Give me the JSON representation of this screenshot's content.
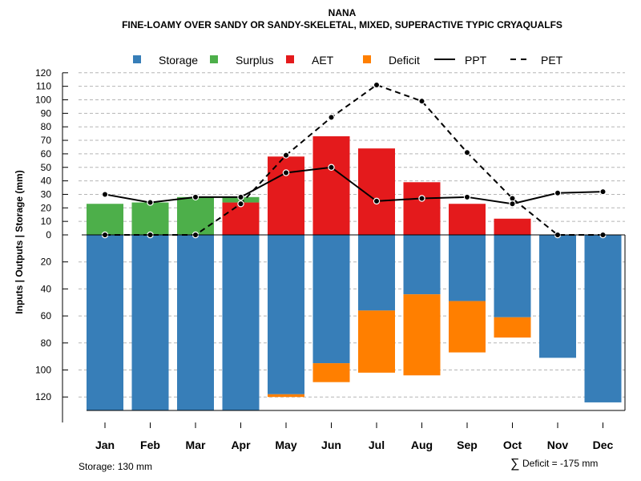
{
  "chart_data": {
    "type": "bar",
    "title": "NANA",
    "subtitle": "FINE-LOAMY OVER SANDY OR SANDY-SKELETAL, MIXED, SUPERACTIVE TYPIC CRYAQUALFS",
    "ylabel": "Inputs | Outputs | Storage    (mm)",
    "ylim": [
      -130,
      120
    ],
    "y_ticks_positive": [
      0,
      10,
      20,
      30,
      40,
      50,
      60,
      70,
      80,
      90,
      100,
      110,
      120
    ],
    "y_ticks_negative": [
      20,
      40,
      60,
      80,
      100,
      120
    ],
    "categories": [
      "Jan",
      "Feb",
      "Mar",
      "Apr",
      "May",
      "Jun",
      "Jul",
      "Aug",
      "Sep",
      "Oct",
      "Nov",
      "Dec"
    ],
    "series": [
      {
        "name": "Storage",
        "color": "#377EB8",
        "values": [
          130,
          130,
          130,
          130,
          118,
          95,
          56,
          44,
          49,
          61,
          91,
          124
        ]
      },
      {
        "name": "Surplus",
        "color": "#4DAF4A",
        "values": [
          23,
          24,
          28,
          4,
          0,
          0,
          0,
          0,
          0,
          0,
          0,
          0
        ]
      },
      {
        "name": "AET",
        "color": "#E41A1C",
        "values": [
          0,
          0,
          0,
          24,
          58,
          73,
          64,
          39,
          23,
          12,
          0,
          0
        ]
      },
      {
        "name": "Deficit",
        "color": "#FF7F00",
        "values": [
          0,
          0,
          0,
          0,
          2,
          14,
          46,
          60,
          38,
          15,
          0,
          0
        ]
      },
      {
        "name": "PPT",
        "color": "#000000",
        "style": "solid",
        "values": [
          30,
          24,
          28,
          28,
          46,
          50,
          25,
          27,
          28,
          23,
          31,
          32
        ]
      },
      {
        "name": "PET",
        "color": "#000000",
        "style": "dashed",
        "values": [
          0,
          0,
          0,
          23,
          59,
          87,
          111,
          99,
          61,
          27,
          0,
          0
        ]
      }
    ],
    "legend_position": "top",
    "grid": true
  },
  "footer": {
    "storage_note": "Storage: 130 mm",
    "deficit_symbol": "∑",
    "deficit_note": "Deficit = -175 mm"
  }
}
